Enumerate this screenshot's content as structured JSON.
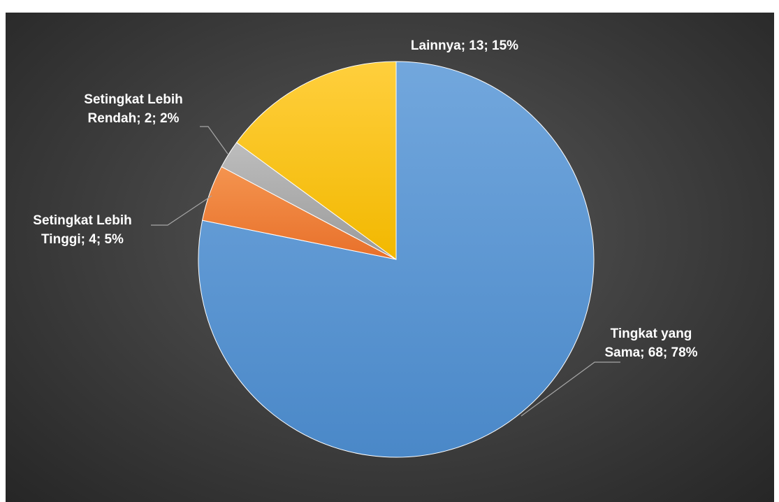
{
  "chart_data": {
    "type": "pie",
    "title": "",
    "categories": [
      "Tingkat yang Sama",
      "Setingkat Lebih Tinggi",
      "Setingkat Lebih Rendah",
      "Lainnya"
    ],
    "values": [
      68,
      4,
      2,
      13
    ],
    "percent": [
      78,
      5,
      2,
      15
    ],
    "start_angle_deg": 0,
    "direction": "clockwise",
    "legend": "none",
    "data_labels": [
      {
        "lines": [
          "Tingkat yang",
          "Sama; 68; 78%"
        ]
      },
      {
        "lines": [
          "Setingkat Lebih",
          "Tinggi; 4; 5%"
        ]
      },
      {
        "lines": [
          "Setingkat Lebih",
          "Rendah; 2; 2%"
        ]
      },
      {
        "lines": [
          "Lainnya; 13; 15%"
        ]
      }
    ],
    "colors": [
      "#5b9bd5",
      "#ed7d31",
      "#a5a5a5",
      "#ffc000"
    ],
    "background": "#404040"
  }
}
